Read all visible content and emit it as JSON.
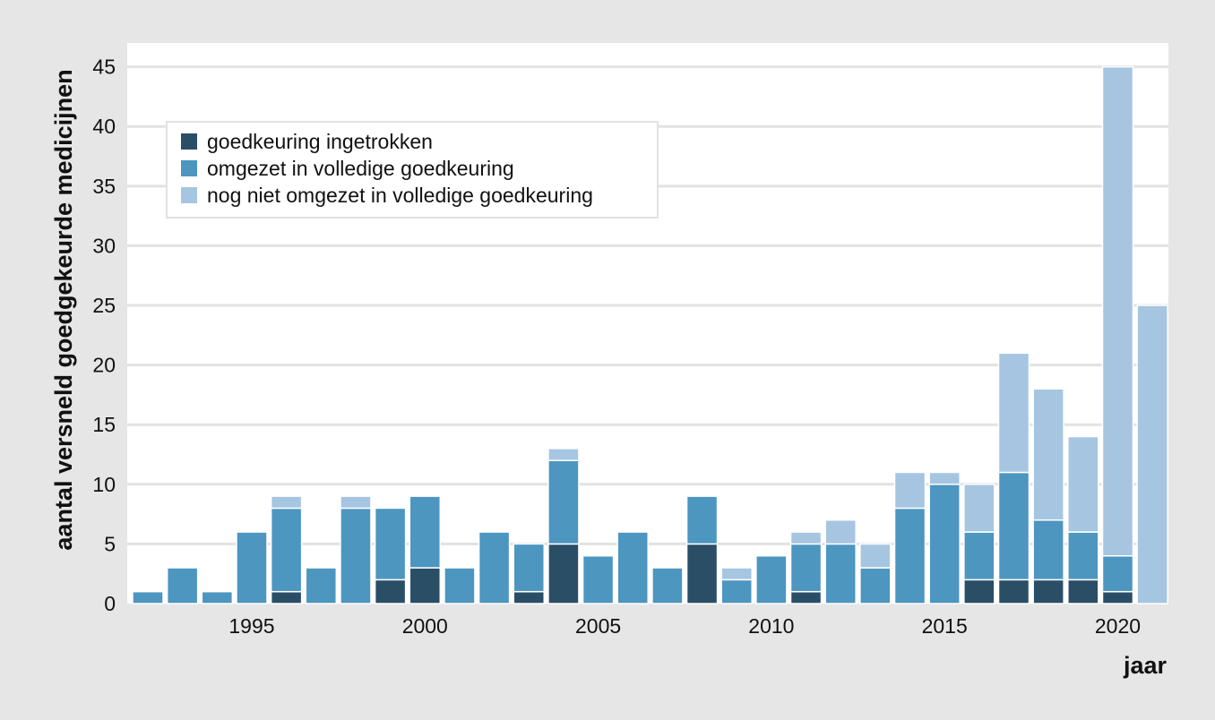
{
  "chart_data": {
    "type": "bar",
    "stacked": true,
    "xlabel": "jaar",
    "ylabel": "aantal versneld goedgekeurde medicijnen",
    "ylim": [
      0,
      47
    ],
    "yticks": [
      0,
      5,
      10,
      15,
      20,
      25,
      30,
      35,
      40,
      45
    ],
    "xticks": [
      1995,
      2000,
      2005,
      2010,
      2015,
      2020
    ],
    "grid": "horizontal",
    "legend_position": "top-left",
    "categories": [
      1992,
      1993,
      1994,
      1995,
      1996,
      1997,
      1998,
      1999,
      2000,
      2001,
      2002,
      2003,
      2004,
      2005,
      2006,
      2007,
      2008,
      2009,
      2010,
      2011,
      2012,
      2013,
      2014,
      2015,
      2016,
      2017,
      2018,
      2019,
      2020,
      2021
    ],
    "series": [
      {
        "name": "goedkeuring ingetrokken",
        "color": "#2b4e67",
        "values": [
          0,
          0,
          0,
          0,
          1,
          0,
          0,
          2,
          3,
          0,
          0,
          1,
          5,
          0,
          0,
          0,
          5,
          0,
          0,
          1,
          0,
          0,
          0,
          0,
          2,
          2,
          2,
          2,
          1,
          0
        ]
      },
      {
        "name": "omgezet in volledige goedkeuring",
        "color": "#4c96c0",
        "values": [
          1,
          3,
          1,
          6,
          7,
          3,
          8,
          6,
          6,
          3,
          6,
          4,
          7,
          4,
          6,
          3,
          4,
          2,
          4,
          4,
          5,
          3,
          8,
          10,
          4,
          9,
          5,
          4,
          3,
          0
        ]
      },
      {
        "name": "nog niet omgezet in volledige goedkeuring",
        "color": "#a6c5e1",
        "values": [
          0,
          0,
          0,
          0,
          1,
          0,
          1,
          0,
          0,
          0,
          0,
          0,
          1,
          0,
          0,
          0,
          0,
          1,
          0,
          1,
          2,
          2,
          3,
          1,
          4,
          10,
          11,
          8,
          41,
          25
        ]
      }
    ]
  }
}
